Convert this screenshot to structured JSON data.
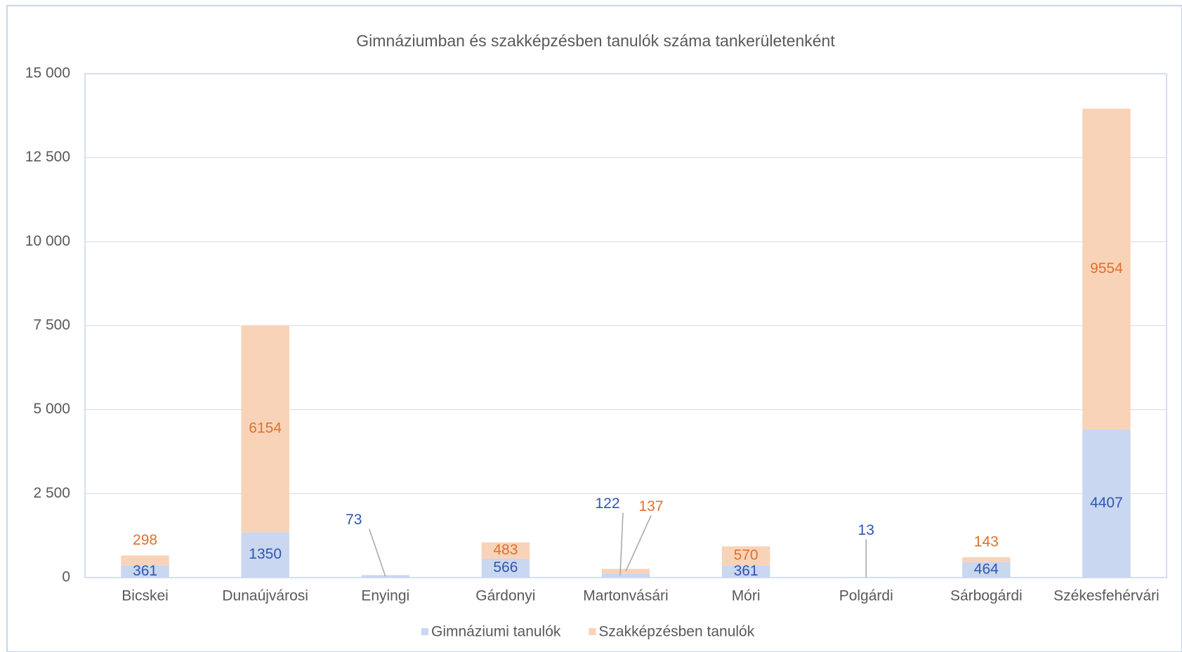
{
  "chart_data": {
    "type": "stacked_bar",
    "title": "Gimnáziumban és szakképzésben tanulók  száma tankerületenként",
    "categories": [
      "Bicskei",
      "Dunaújvárosi",
      "Enyingi",
      "Gárdonyi",
      "Martonvásári",
      "Móri",
      "Polgárdi",
      "Sárbogárdi",
      "Székesfehérvári"
    ],
    "series": [
      {
        "name": "Gimnáziumi tanulók",
        "color": "#c9d7f0",
        "label_color": "#2f55b0",
        "values": [
          361,
          1350,
          73,
          566,
          122,
          361,
          13,
          464,
          4407
        ]
      },
      {
        "name": "Szakképzésben tanulók",
        "color": "#f9d3b8",
        "label_color": "#e0702a",
        "values": [
          298,
          6154,
          null,
          483,
          137,
          570,
          null,
          143,
          9554
        ]
      }
    ],
    "ylim": [
      0,
      15000
    ],
    "yticks": [
      0,
      {
        "value": 2500,
        "label": "2 500"
      },
      {
        "value": 5000,
        "label": "5 000"
      },
      {
        "value": 7500,
        "label": "7 500"
      },
      {
        "value": 10000,
        "label": "10 000"
      },
      {
        "value": 12500,
        "label": "12 500"
      },
      {
        "value": 15000,
        "label": "15 000"
      }
    ],
    "grid": true,
    "legend": "bottom"
  }
}
